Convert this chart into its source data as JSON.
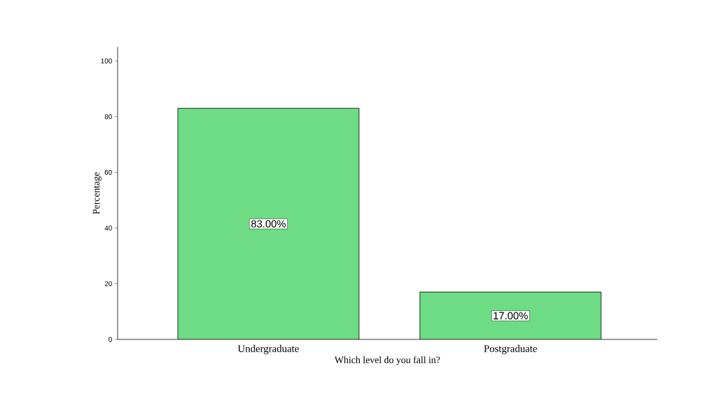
{
  "chart_data": {
    "type": "bar",
    "xlabel": "Which level do you fall in?",
    "ylabel": "Percentage",
    "categories": [
      "Undergraduate",
      "Postgraduate"
    ],
    "values": [
      83,
      17
    ],
    "value_labels": [
      "83.00%",
      "17.00%"
    ],
    "color": "#6ddc84",
    "ylim": [
      0,
      105
    ],
    "yticks": [
      0,
      20,
      40,
      60,
      80,
      100
    ]
  }
}
